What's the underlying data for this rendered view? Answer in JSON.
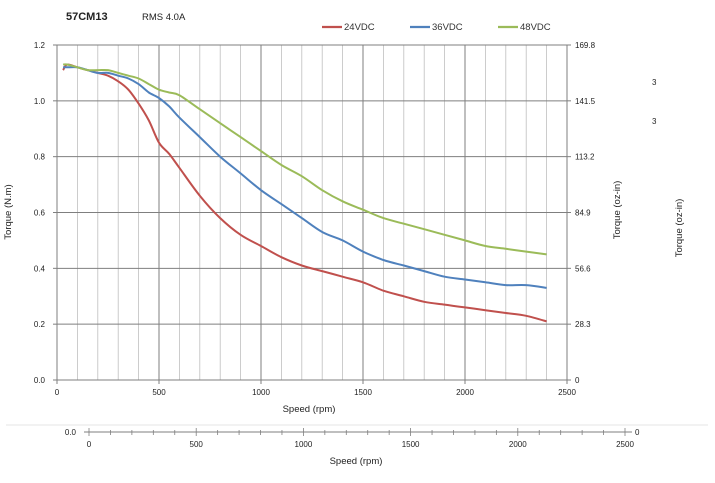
{
  "header": {
    "model": "57CM13",
    "rms": "RMS 4.0A"
  },
  "colors": {
    "24VDC": "#c0504d",
    "36VDC": "#4f81bd",
    "48VDC": "#9bbb59",
    "grid_major": "#7f7f7f",
    "grid_minor": "#bfbfbf"
  },
  "side_labels": {
    "right_mark_top": "3",
    "right_mark_bottom": "3",
    "far_right_axis": "Torque (oz-in)"
  },
  "chart_data": [
    {
      "type": "line",
      "title": "",
      "xlabel": "Speed (rpm)",
      "ylabel": "Torque (N.m)",
      "y2label": "Torque (oz-in)",
      "xlim": [
        0,
        2500
      ],
      "ylim": [
        0,
        1.2
      ],
      "y2lim": [
        0,
        169.8
      ],
      "x_ticks": [
        "0",
        "500",
        "1000",
        "1500",
        "2000",
        "2500"
      ],
      "y_ticks": [
        "0.0",
        "0.2",
        "0.4",
        "0.6",
        "0.8",
        "1.0",
        "1.2"
      ],
      "y2_ticks": [
        "0",
        "28.3",
        "56.6",
        "84.9",
        "113.2",
        "141.5",
        "169.8"
      ],
      "grid": true,
      "legend": "top-right",
      "series": [
        {
          "name": "24VDC",
          "x": [
            30,
            50,
            100,
            150,
            200,
            250,
            300,
            350,
            400,
            450,
            500,
            550,
            600,
            700,
            800,
            900,
            1000,
            1100,
            1200,
            1300,
            1400,
            1500,
            1600,
            1700,
            1800,
            1900,
            2000,
            2100,
            2200,
            2300,
            2400
          ],
          "y": [
            1.11,
            1.13,
            1.12,
            1.11,
            1.1,
            1.09,
            1.07,
            1.04,
            0.99,
            0.93,
            0.85,
            0.81,
            0.76,
            0.66,
            0.58,
            0.52,
            0.48,
            0.44,
            0.41,
            0.39,
            0.37,
            0.35,
            0.32,
            0.3,
            0.28,
            0.27,
            0.26,
            0.25,
            0.24,
            0.23,
            0.21
          ]
        },
        {
          "name": "36VDC",
          "x": [
            30,
            50,
            100,
            150,
            200,
            250,
            300,
            350,
            400,
            450,
            500,
            550,
            600,
            700,
            800,
            900,
            1000,
            1100,
            1200,
            1300,
            1400,
            1500,
            1600,
            1700,
            1800,
            1900,
            2000,
            2100,
            2200,
            2300,
            2400
          ],
          "y": [
            1.12,
            1.12,
            1.12,
            1.11,
            1.1,
            1.1,
            1.09,
            1.08,
            1.06,
            1.03,
            1.01,
            0.98,
            0.94,
            0.87,
            0.8,
            0.74,
            0.68,
            0.63,
            0.58,
            0.53,
            0.5,
            0.46,
            0.43,
            0.41,
            0.39,
            0.37,
            0.36,
            0.35,
            0.34,
            0.34,
            0.33
          ]
        },
        {
          "name": "48VDC",
          "x": [
            30,
            50,
            100,
            150,
            200,
            250,
            300,
            350,
            400,
            450,
            500,
            550,
            600,
            700,
            800,
            900,
            1000,
            1100,
            1200,
            1300,
            1400,
            1500,
            1600,
            1700,
            1800,
            1900,
            2000,
            2100,
            2200,
            2300,
            2400
          ],
          "y": [
            1.13,
            1.13,
            1.12,
            1.11,
            1.11,
            1.11,
            1.1,
            1.09,
            1.08,
            1.06,
            1.04,
            1.03,
            1.02,
            0.97,
            0.92,
            0.87,
            0.82,
            0.77,
            0.73,
            0.68,
            0.64,
            0.61,
            0.58,
            0.56,
            0.54,
            0.52,
            0.5,
            0.48,
            0.47,
            0.46,
            0.45
          ]
        }
      ]
    },
    {
      "type": "line",
      "title": "",
      "xlabel": "Speed (rpm)",
      "ylabel": "",
      "xlim": [
        0,
        2500
      ],
      "x_ticks": [
        "0",
        "500",
        "1000",
        "1500",
        "2000",
        "2500"
      ],
      "y_ticks": [
        "0.0"
      ],
      "y2_ticks": [
        "0"
      ],
      "grid": true,
      "series": []
    }
  ]
}
